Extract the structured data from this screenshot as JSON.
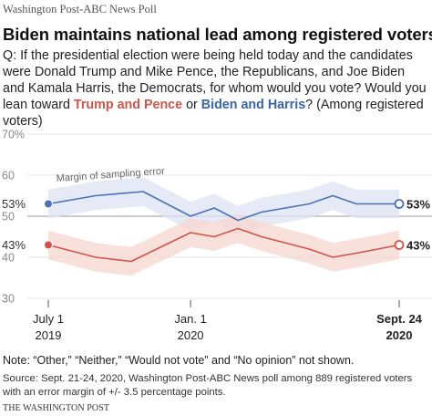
{
  "header": {
    "kicker": "Washington Post-ABC News Poll",
    "headline": "Biden maintains national lead among registered voters",
    "question_lead": "Q: If the presidential election were being held today and the candidates were Donald Trump and Mike Pence, the Republicans, and Joe Biden and Kamala Harris, the Democrats, for whom would you vote? Would you lean toward",
    "trump_label": "Trump and Pence",
    "or_text": "or",
    "biden_label": "Biden and Harris",
    "question_tail": "? (Among registered voters)"
  },
  "chart_data": {
    "type": "line",
    "ylim": [
      30,
      70
    ],
    "yticks": [
      "70%",
      "60",
      "50",
      "40",
      "30"
    ],
    "ytick_values": [
      70,
      60,
      50,
      40,
      30
    ],
    "x_ticks": [
      {
        "line1": "July 1",
        "line2": "2019",
        "x": 0,
        "bold": false
      },
      {
        "line1": "Jan. 1",
        "line2": "2020",
        "x": 6,
        "bold": false
      },
      {
        "line1": "Sept. 24",
        "line2": "2020",
        "x": 14.8,
        "bold": true
      }
    ],
    "margin_of_error": 3.5,
    "band_label": "Margin of sampling error",
    "colors": {
      "biden": "#4a72b8",
      "trump": "#d1544a",
      "biden_band": "#dce3f3",
      "trump_band": "#f6d5cf"
    },
    "series": [
      {
        "name": "Biden and Harris",
        "key": "biden",
        "x": [
          0,
          2,
          4,
          6,
          7,
          8,
          9,
          11,
          12,
          13,
          14.8
        ],
        "values": [
          53,
          55,
          56,
          50,
          52,
          49,
          51,
          53,
          55,
          53,
          53
        ],
        "start_label": "53%",
        "end_label": "53%"
      },
      {
        "name": "Trump and Pence",
        "key": "trump",
        "x": [
          0,
          2,
          3.5,
          6,
          7,
          8,
          9,
          11,
          12,
          13,
          14.8
        ],
        "values": [
          43,
          40,
          39,
          46,
          45,
          47,
          45,
          42,
          40,
          41,
          43
        ],
        "start_label": "43%",
        "end_label": "43%"
      }
    ]
  },
  "footer": {
    "note": "Note: “Other,” “Neither,” “Would not vote” and “No opinion” not shown.",
    "source": "Source: Sept. 21-24, 2020, Washington Post-ABC News poll among 889 registered voters with an error margin of +/- 3.5 percentage points.",
    "brand": "THE WASHINGTON POST"
  }
}
